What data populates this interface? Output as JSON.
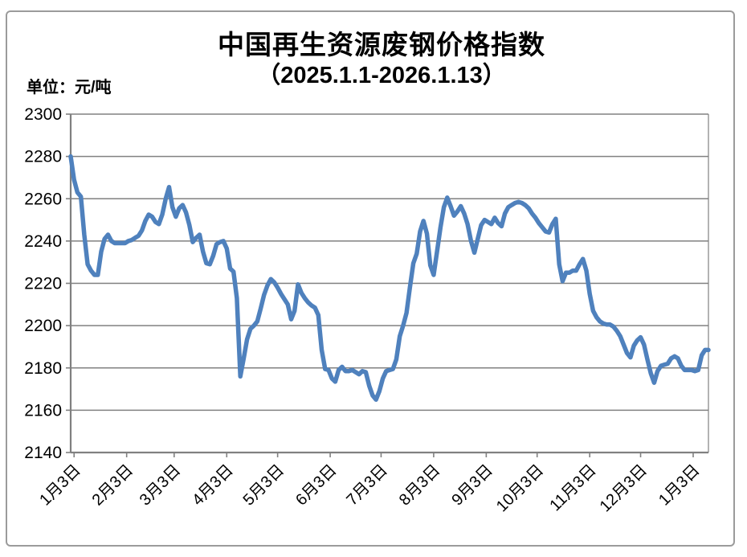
{
  "title": "中国再生资源废钢价格指数",
  "subtitle": "（2025.1.1-2026.1.13）",
  "unit_label": "单位：元/吨",
  "colors": {
    "line": "#4f81bd",
    "grid": "#808080",
    "axis": "#808080",
    "frame": "#9b9b9b",
    "text": "#000000",
    "background": "#ffffff"
  },
  "chart_data": {
    "type": "line",
    "title": "中国再生资源废钢价格指数",
    "subtitle": "（2025.1.1-2026.1.13）",
    "xlabel": "",
    "ylabel": "元/吨",
    "ylim": [
      2140,
      2300
    ],
    "y_ticks": [
      2140,
      2160,
      2180,
      2200,
      2220,
      2240,
      2260,
      2280,
      2300
    ],
    "grid": "horizontal",
    "legend": "none",
    "x_domain_days": 376,
    "x_ticks": [
      {
        "label": "1月3日",
        "day": 2
      },
      {
        "label": "2月3日",
        "day": 33
      },
      {
        "label": "3月3日",
        "day": 61
      },
      {
        "label": "4月3日",
        "day": 92
      },
      {
        "label": "5月3日",
        "day": 122
      },
      {
        "label": "6月3日",
        "day": 153
      },
      {
        "label": "7月3日",
        "day": 183
      },
      {
        "label": "8月3日",
        "day": 214
      },
      {
        "label": "9月3日",
        "day": 245
      },
      {
        "label": "10月3日",
        "day": 275
      },
      {
        "label": "11月3日",
        "day": 306
      },
      {
        "label": "12月3日",
        "day": 336
      },
      {
        "label": "1月3日",
        "day": 367
      }
    ],
    "series": [
      {
        "name": "中国再生资源废钢价格指数",
        "color": "#4f81bd",
        "day_step": 2,
        "values": [
          2280,
          2269,
          2263,
          2261,
          2243,
          2229,
          2226,
          2224,
          2224,
          2235,
          2241,
          2243,
          2240,
          2239,
          2239,
          2239,
          2239,
          2240,
          2240.5,
          2241.5,
          2242.5,
          2245,
          2249.5,
          2252.5,
          2251.5,
          2249,
          2248,
          2252.5,
          2260,
          2265.5,
          2256,
          2251.5,
          2255.5,
          2257,
          2253.5,
          2247.5,
          2239.5,
          2241.5,
          2243,
          2235,
          2229.5,
          2229,
          2233,
          2238.5,
          2239.5,
          2240,
          2236.5,
          2227,
          2225.5,
          2213,
          2176,
          2184.5,
          2193.5,
          2198.5,
          2200,
          2202,
          2208,
          2214.5,
          2219,
          2222,
          2220.5,
          2218,
          2215,
          2212.5,
          2210,
          2203,
          2207,
          2219.5,
          2215.5,
          2213,
          2211,
          2209.5,
          2208.5,
          2205,
          2188.5,
          2179.5,
          2179,
          2175,
          2173.5,
          2179,
          2180.5,
          2178.5,
          2178.5,
          2179,
          2178,
          2177,
          2178.5,
          2178,
          2171.5,
          2167,
          2165,
          2169,
          2175,
          2178.5,
          2179,
          2179.5,
          2184,
          2195,
          2200,
          2206,
          2218,
          2229.5,
          2234,
          2244.5,
          2249.5,
          2243.5,
          2228.5,
          2224,
          2235,
          2246.5,
          2256,
          2260.5,
          2256.5,
          2252,
          2254,
          2256.5,
          2253,
          2248,
          2240,
          2234.5,
          2241,
          2247.5,
          2250,
          2249,
          2248,
          2251,
          2248.5,
          2247,
          2253,
          2256,
          2257,
          2258,
          2258.5,
          2258,
          2257,
          2255.5,
          2253,
          2251,
          2248.5,
          2246.5,
          2244.5,
          2244,
          2248,
          2250.5,
          2229,
          2221,
          2225,
          2225,
          2226,
          2226,
          2229,
          2231.5,
          2226,
          2215,
          2207,
          2204,
          2202,
          2201,
          2200.5,
          2200.5,
          2199.5,
          2197.5,
          2195,
          2191,
          2187,
          2185,
          2190.5,
          2193,
          2194.5,
          2191,
          2184,
          2177.5,
          2173,
          2178.5,
          2181,
          2181.5,
          2182,
          2184.5,
          2185.5,
          2184.5,
          2181,
          2179,
          2179,
          2179,
          2178.5,
          2179,
          2186,
          2188.5,
          2188.5
        ]
      }
    ]
  }
}
